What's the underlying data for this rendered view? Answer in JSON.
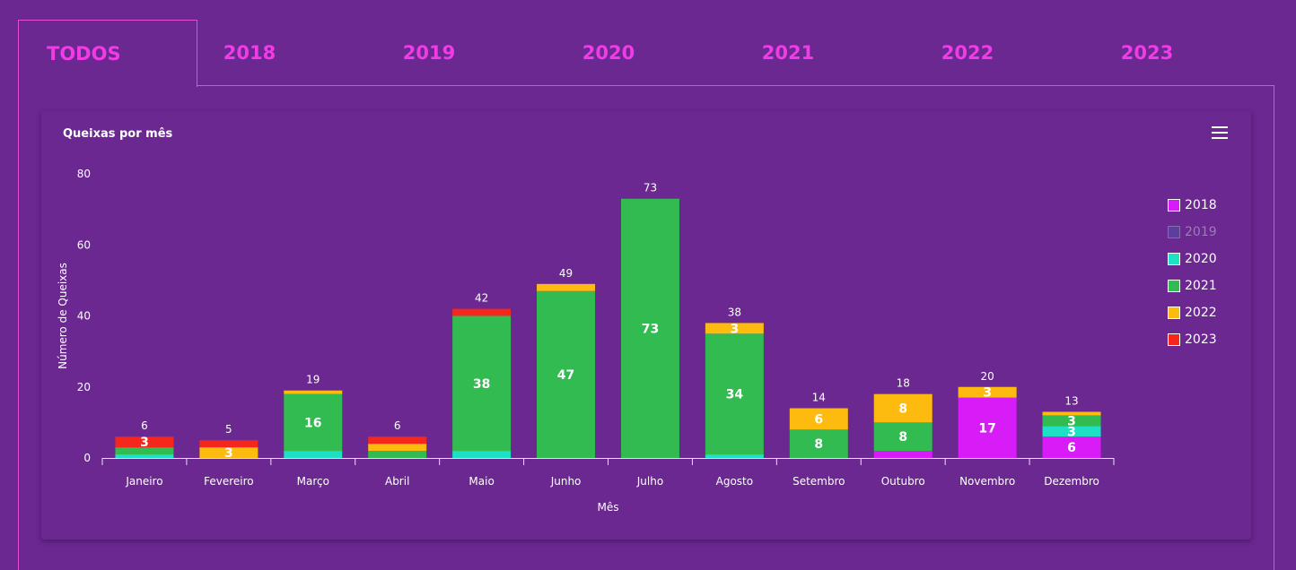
{
  "tabs": [
    {
      "label": "TODOS",
      "active": true
    },
    {
      "label": "2018",
      "active": false
    },
    {
      "label": "2019",
      "active": false
    },
    {
      "label": "2020",
      "active": false
    },
    {
      "label": "2021",
      "active": false
    },
    {
      "label": "2022",
      "active": false
    },
    {
      "label": "2023",
      "active": false
    }
  ],
  "card": {
    "title": "Queixas por mês",
    "menu_icon": "hamburger-menu-icon"
  },
  "legend": [
    {
      "label": "2018",
      "color": "#d81cf8",
      "hidden": false
    },
    {
      "label": "2019",
      "color": "#5b3fa0",
      "hidden": true
    },
    {
      "label": "2020",
      "color": "#1de0c4",
      "hidden": false
    },
    {
      "label": "2021",
      "color": "#31bb50",
      "hidden": false
    },
    {
      "label": "2022",
      "color": "#fdbb0f",
      "hidden": false
    },
    {
      "label": "2023",
      "color": "#f5271c",
      "hidden": false
    }
  ],
  "chart_data": {
    "type": "bar",
    "stacked": true,
    "title": "Queixas por mês",
    "xlabel": "Mês",
    "ylabel": "Número de Queixas",
    "ylim": [
      0,
      80
    ],
    "yticks": [
      0,
      20,
      40,
      60,
      80
    ],
    "categories": [
      "Janeiro",
      "Fevereiro",
      "Março",
      "Abril",
      "Maio",
      "Junho",
      "Julho",
      "Agosto",
      "Setembro",
      "Outubro",
      "Novembro",
      "Dezembro"
    ],
    "series": [
      {
        "name": "2018",
        "color": "#d81cf8",
        "values": [
          0,
          0,
          0,
          0,
          0,
          0,
          0,
          0,
          0,
          2,
          17,
          6
        ]
      },
      {
        "name": "2020",
        "color": "#1de0c4",
        "values": [
          1,
          0,
          2,
          0,
          2,
          0,
          0,
          1,
          0,
          0,
          0,
          3
        ]
      },
      {
        "name": "2021",
        "color": "#31bb50",
        "values": [
          2,
          0,
          16,
          2,
          38,
          47,
          73,
          34,
          8,
          8,
          0,
          3
        ]
      },
      {
        "name": "2022",
        "color": "#fdbb0f",
        "values": [
          0,
          3,
          1,
          2,
          0,
          2,
          0,
          3,
          6,
          8,
          3,
          1
        ]
      },
      {
        "name": "2023",
        "color": "#f5271c",
        "values": [
          3,
          2,
          0,
          2,
          2,
          0,
          0,
          0,
          0,
          0,
          0,
          0
        ]
      }
    ],
    "totals": [
      6,
      5,
      19,
      6,
      42,
      49,
      73,
      38,
      14,
      18,
      20,
      13
    ],
    "min_label_value": 3,
    "grid": false,
    "legend_position": "right"
  }
}
